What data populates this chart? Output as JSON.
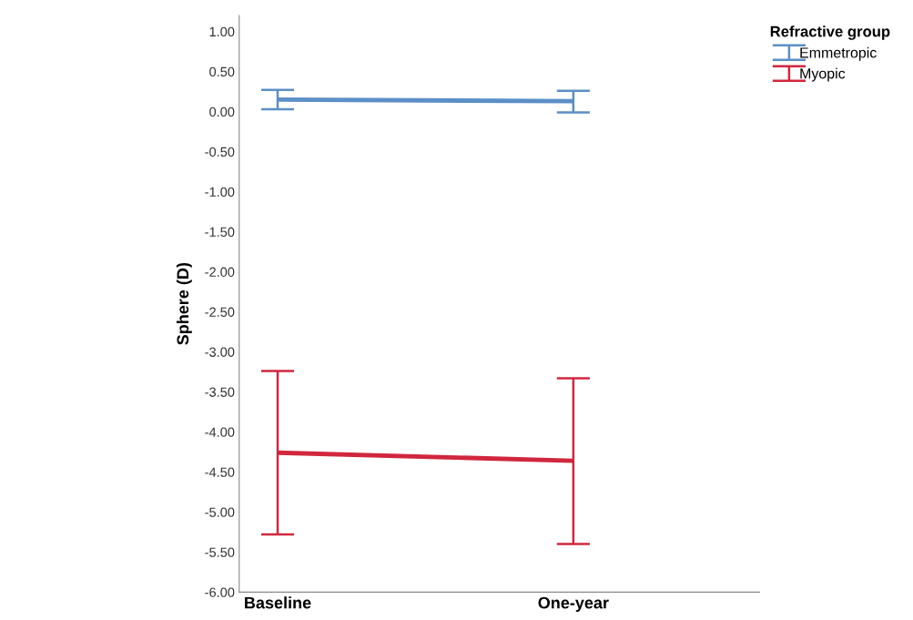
{
  "chart_data": {
    "type": "line",
    "ylabel": "Sphere (D)",
    "legend_title": "Refractive group",
    "legend": "top right",
    "categories": [
      "Baseline",
      "One-year"
    ],
    "series": [
      {
        "name": "Emmetropic",
        "color": "#5b8fc7",
        "values": [
          0.15,
          0.13
        ],
        "errors": [
          [
            0.03,
            0.27
          ],
          [
            -0.01,
            0.26
          ]
        ]
      },
      {
        "name": "Myopic",
        "color": "#d0273e",
        "values": [
          -4.26,
          -4.36
        ],
        "errors": [
          [
            -5.28,
            -3.24
          ],
          [
            -5.4,
            -3.33
          ]
        ]
      }
    ],
    "ylim": [
      -6,
      1.2
    ],
    "yticks": [
      {
        "value": -6,
        "label": "-6.00"
      },
      {
        "value": -5.5,
        "label": "-5.50"
      },
      {
        "value": -5,
        "label": "-5.00"
      },
      {
        "value": -4.5,
        "label": "-4.50"
      },
      {
        "value": -4,
        "label": "-4.00"
      },
      {
        "value": -3.5,
        "label": "-3.50"
      },
      {
        "value": -3,
        "label": "-3.00"
      },
      {
        "value": -2.5,
        "label": "-2.50"
      },
      {
        "value": -2,
        "label": "-2.00"
      },
      {
        "value": -1.5,
        "label": "-1.50"
      },
      {
        "value": -1,
        "label": "-1.00"
      },
      {
        "value": -0.5,
        "label": "-0.50"
      },
      {
        "value": 0,
        "label": "0.00"
      },
      {
        "value": 0.5,
        "label": "0.50"
      },
      {
        "value": 1,
        "label": "1.00"
      }
    ],
    "grid": false,
    "marker": "none",
    "line_style": "solid"
  }
}
